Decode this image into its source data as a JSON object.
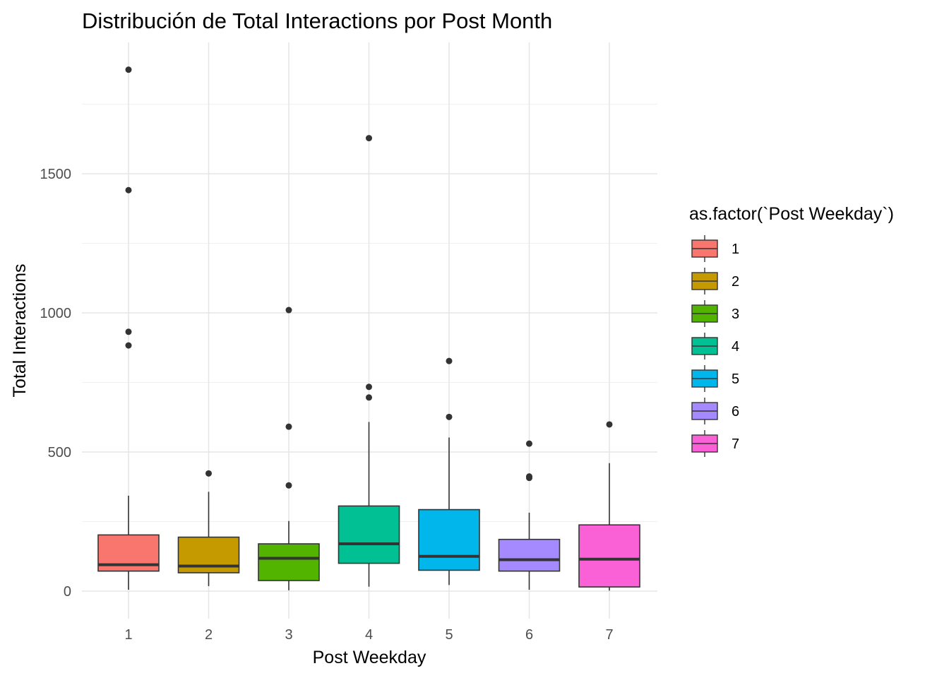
{
  "chart_data": {
    "type": "boxplot",
    "title": "Distribución de Total Interactions por Post Month",
    "xlabel": "Post Weekday",
    "ylabel": "Total Interactions",
    "ylim": [
      -90,
      1960
    ],
    "yticks": [
      0,
      500,
      1000,
      1500
    ],
    "grid": true,
    "legend": {
      "title": "as.factor(`Post Weekday`)",
      "position": "right"
    },
    "categories": [
      "1",
      "2",
      "3",
      "4",
      "5",
      "6",
      "7"
    ],
    "colors": [
      "#F8766D",
      "#C49A00",
      "#53B400",
      "#00C094",
      "#00B6EB",
      "#A58AFF",
      "#FB61D7"
    ],
    "boxes": [
      {
        "category": "1",
        "min": 5,
        "q1": 72,
        "median": 95,
        "q3": 202,
        "max": 343,
        "outliers": [
          883,
          932,
          1441,
          1874
        ]
      },
      {
        "category": "2",
        "min": 18,
        "q1": 66,
        "median": 90,
        "q3": 194,
        "max": 357,
        "outliers": [
          423
        ]
      },
      {
        "category": "3",
        "min": 3,
        "q1": 38,
        "median": 118,
        "q3": 170,
        "max": 252,
        "outliers": [
          380,
          591,
          1010
        ]
      },
      {
        "category": "4",
        "min": 16,
        "q1": 100,
        "median": 170,
        "q3": 306,
        "max": 608,
        "outliers": [
          696,
          734,
          1628
        ]
      },
      {
        "category": "5",
        "min": 22,
        "q1": 75,
        "median": 125,
        "q3": 293,
        "max": 552,
        "outliers": [
          626,
          827
        ]
      },
      {
        "category": "6",
        "min": 5,
        "q1": 72,
        "median": 113,
        "q3": 186,
        "max": 282,
        "outliers": [
          407,
          412,
          530
        ]
      },
      {
        "category": "7",
        "min": 2,
        "q1": 15,
        "median": 115,
        "q3": 238,
        "max": 460,
        "outliers": [
          599
        ]
      }
    ]
  }
}
